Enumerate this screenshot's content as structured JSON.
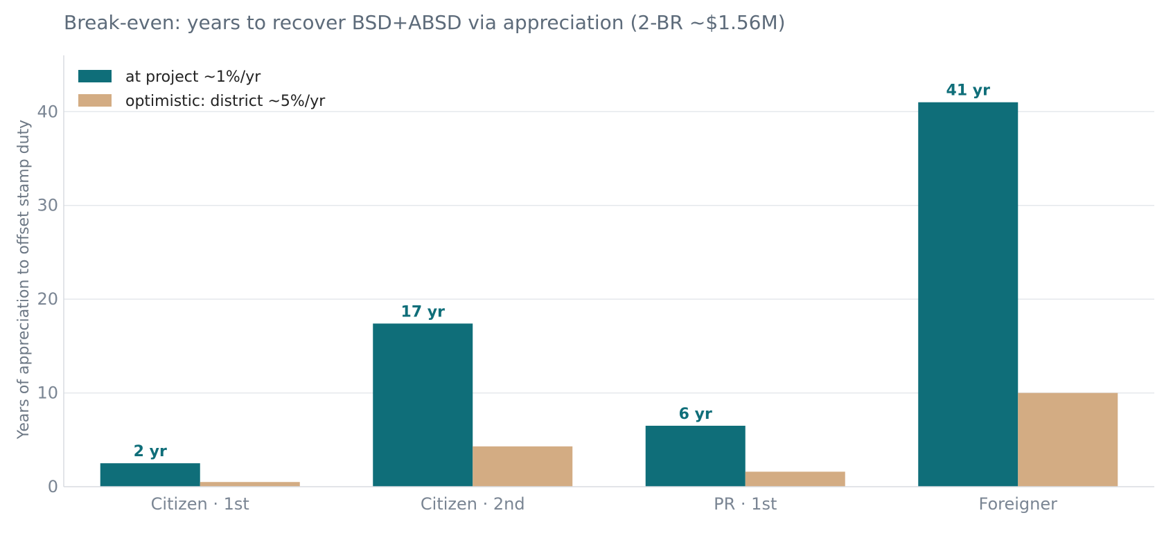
{
  "chart_data": {
    "type": "bar",
    "title": "Break-even: years to recover BSD+ABSD via appreciation (2-BR ~$1.56M)",
    "ylabel": "Years of appreciation to offset stamp duty",
    "xlabel": "",
    "categories": [
      "Citizen · 1st",
      "Citizen · 2nd",
      "PR · 1st",
      "Foreigner"
    ],
    "series": [
      {
        "name": "at project ~1%/yr",
        "color": "#0f6e79",
        "values": [
          2.5,
          17.4,
          6.5,
          41.0
        ],
        "labels": [
          "2 yr",
          "17 yr",
          "6 yr",
          "41 yr"
        ]
      },
      {
        "name": "optimistic: district ~5%/yr",
        "color": "#d3ac83",
        "values": [
          0.5,
          4.3,
          1.6,
          10.0
        ]
      }
    ],
    "ylim": [
      0,
      46
    ],
    "yticks": [
      0,
      10,
      20,
      30,
      40
    ],
    "grid": true,
    "legend_position": "top-left"
  }
}
